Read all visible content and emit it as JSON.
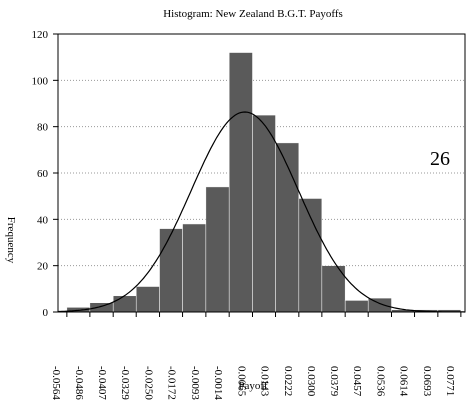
{
  "chart_data": {
    "type": "histogram",
    "title": "Histogram: New Zealand B.G.T. Payoffs",
    "xlabel": "Payoff",
    "ylabel": "Frequency",
    "annotation": "26",
    "bins": [
      -0.0564,
      -0.0486,
      -0.0407,
      -0.0329,
      -0.025,
      -0.0172,
      -0.0093,
      -0.0014,
      0.0065,
      0.0143,
      0.0222,
      0.03,
      0.0379,
      0.0457,
      0.0536,
      0.0614,
      0.0693,
      0.0771
    ],
    "values": [
      2,
      4,
      7,
      11,
      36,
      38,
      54,
      112,
      85,
      73,
      49,
      20,
      5,
      6,
      1,
      1,
      1
    ],
    "color": "#5a5a5a",
    "xlim": [
      -0.0594,
      0.0785
    ],
    "ylim": [
      0,
      120
    ],
    "xticks": [
      {
        "value": -0.0564,
        "label": "-0.0564"
      },
      {
        "value": -0.0486,
        "label": "-0.0486"
      },
      {
        "value": -0.0407,
        "label": "-0.0407"
      },
      {
        "value": -0.0329,
        "label": "-0.0329"
      },
      {
        "value": -0.025,
        "label": "-0.0250"
      },
      {
        "value": -0.0172,
        "label": "-0.0172"
      },
      {
        "value": -0.0093,
        "label": "-0.0093"
      },
      {
        "value": -0.0014,
        "label": "-0.0014"
      },
      0.0065,
      0.0143,
      0.0222,
      {
        "value": 0.03,
        "label": "0.0300"
      },
      0.0379,
      0.0457,
      0.0536,
      0.0614,
      0.0693,
      0.0771
    ],
    "yticks": [
      0,
      20,
      40,
      60,
      80,
      100,
      120
    ],
    "grid": true,
    "normal_curve": {
      "mean": 0.0039,
      "sd": 0.0182
    }
  }
}
